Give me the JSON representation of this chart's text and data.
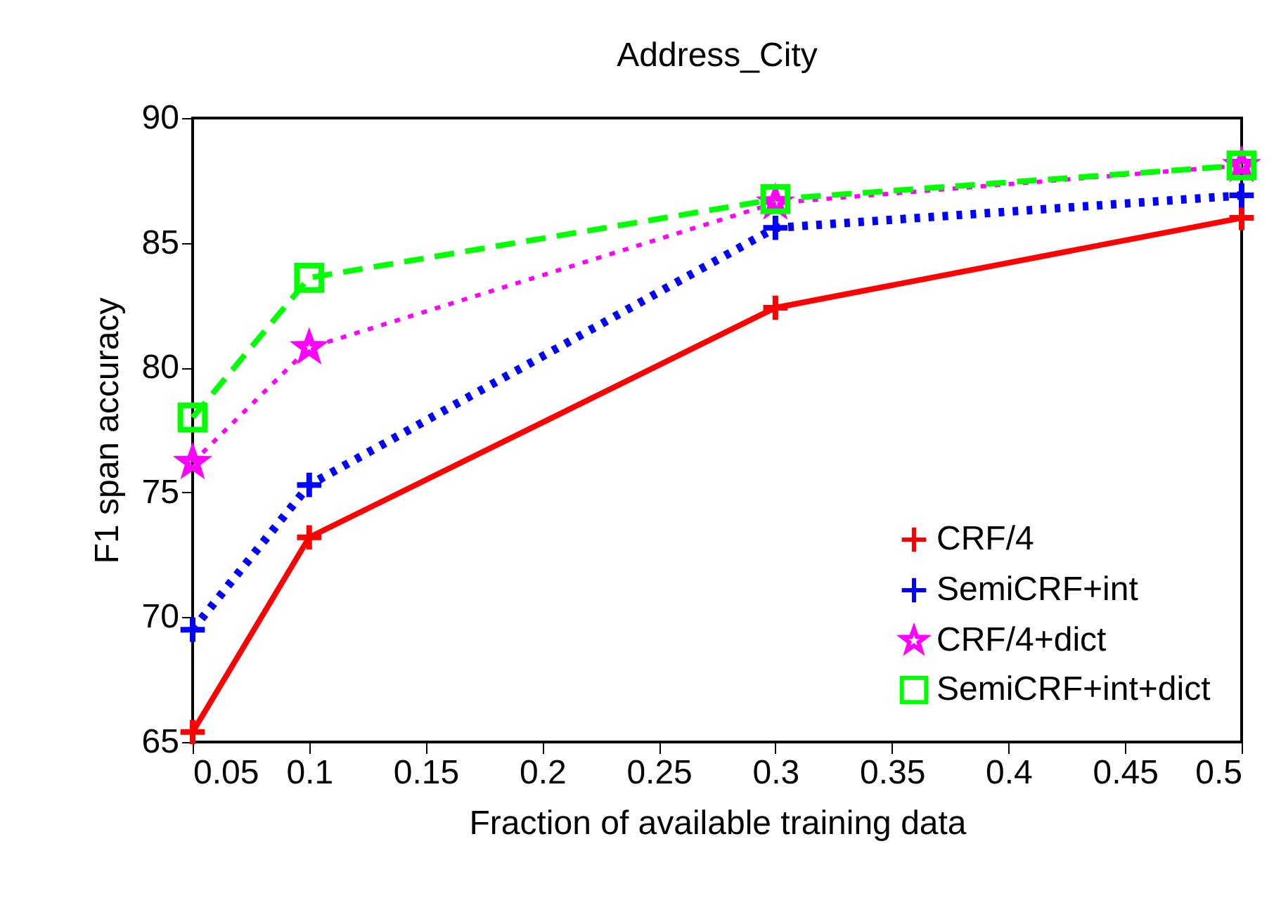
{
  "chart_data": {
    "type": "line",
    "title": "Address_City",
    "xlabel": "Fraction of available training data",
    "ylabel": "F1 span accuracy",
    "x": [
      0.05,
      0.1,
      0.3,
      0.5
    ],
    "series": [
      {
        "name": "CRF/4",
        "color": "#ff0000",
        "values": [
          65.4,
          73.2,
          82.4,
          86.0
        ],
        "marker": "cross",
        "line_style": "solid"
      },
      {
        "name": "SemiCRF+int",
        "color": "#0000ff",
        "values": [
          69.5,
          75.3,
          85.6,
          86.9
        ],
        "marker": "cross",
        "line_style": "dotted"
      },
      {
        "name": "CRF/4+dict",
        "color": "#ff00ff",
        "values": [
          76.2,
          80.8,
          86.6,
          88.1
        ],
        "marker": "star",
        "line_style": "dotted"
      },
      {
        "name": "SemiCRF+int+dict",
        "color": "#00ff00",
        "values": [
          78.0,
          83.6,
          86.75,
          88.1
        ],
        "marker": "square",
        "line_style": "dashed"
      }
    ],
    "xlim": [
      0.05,
      0.5
    ],
    "xticks": [
      0.05,
      0.1,
      0.15,
      0.2,
      0.25,
      0.3,
      0.35,
      0.4,
      0.45,
      0.5
    ],
    "ylim": [
      65,
      90
    ],
    "yticks": [
      65,
      70,
      75,
      80,
      85,
      90
    ],
    "grid": false,
    "legend": "bottom right"
  }
}
